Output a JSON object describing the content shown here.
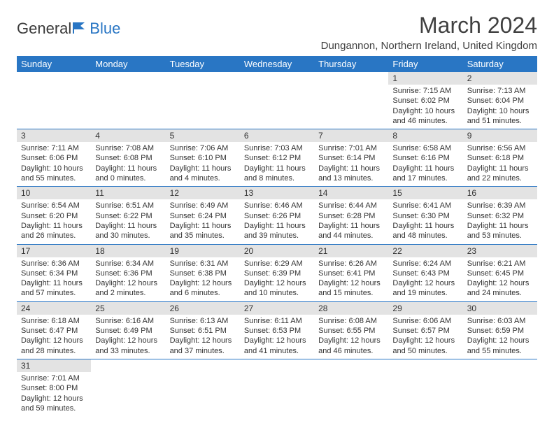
{
  "logo": {
    "text_a": "General",
    "text_b": "Blue"
  },
  "title": "March 2024",
  "location": "Dungannon, Northern Ireland, United Kingdom",
  "colors": {
    "header_bg": "#2976c4",
    "header_text": "#ffffff",
    "daynum_bg": "#e3e3e3",
    "row_border": "#2976c4",
    "body_text": "#333333",
    "logo_dark": "#3a3a3a",
    "logo_blue": "#2976c4"
  },
  "fonts": {
    "title_pt": 32,
    "location_pt": 15,
    "header_pt": 13,
    "body_pt": 11
  },
  "weekdays": [
    "Sunday",
    "Monday",
    "Tuesday",
    "Wednesday",
    "Thursday",
    "Friday",
    "Saturday"
  ],
  "weeks": [
    [
      null,
      null,
      null,
      null,
      null,
      {
        "n": "1",
        "sr": "Sunrise: 7:15 AM",
        "ss": "Sunset: 6:02 PM",
        "dl": "Daylight: 10 hours and 46 minutes."
      },
      {
        "n": "2",
        "sr": "Sunrise: 7:13 AM",
        "ss": "Sunset: 6:04 PM",
        "dl": "Daylight: 10 hours and 51 minutes."
      }
    ],
    [
      {
        "n": "3",
        "sr": "Sunrise: 7:11 AM",
        "ss": "Sunset: 6:06 PM",
        "dl": "Daylight: 10 hours and 55 minutes."
      },
      {
        "n": "4",
        "sr": "Sunrise: 7:08 AM",
        "ss": "Sunset: 6:08 PM",
        "dl": "Daylight: 11 hours and 0 minutes."
      },
      {
        "n": "5",
        "sr": "Sunrise: 7:06 AM",
        "ss": "Sunset: 6:10 PM",
        "dl": "Daylight: 11 hours and 4 minutes."
      },
      {
        "n": "6",
        "sr": "Sunrise: 7:03 AM",
        "ss": "Sunset: 6:12 PM",
        "dl": "Daylight: 11 hours and 8 minutes."
      },
      {
        "n": "7",
        "sr": "Sunrise: 7:01 AM",
        "ss": "Sunset: 6:14 PM",
        "dl": "Daylight: 11 hours and 13 minutes."
      },
      {
        "n": "8",
        "sr": "Sunrise: 6:58 AM",
        "ss": "Sunset: 6:16 PM",
        "dl": "Daylight: 11 hours and 17 minutes."
      },
      {
        "n": "9",
        "sr": "Sunrise: 6:56 AM",
        "ss": "Sunset: 6:18 PM",
        "dl": "Daylight: 11 hours and 22 minutes."
      }
    ],
    [
      {
        "n": "10",
        "sr": "Sunrise: 6:54 AM",
        "ss": "Sunset: 6:20 PM",
        "dl": "Daylight: 11 hours and 26 minutes."
      },
      {
        "n": "11",
        "sr": "Sunrise: 6:51 AM",
        "ss": "Sunset: 6:22 PM",
        "dl": "Daylight: 11 hours and 30 minutes."
      },
      {
        "n": "12",
        "sr": "Sunrise: 6:49 AM",
        "ss": "Sunset: 6:24 PM",
        "dl": "Daylight: 11 hours and 35 minutes."
      },
      {
        "n": "13",
        "sr": "Sunrise: 6:46 AM",
        "ss": "Sunset: 6:26 PM",
        "dl": "Daylight: 11 hours and 39 minutes."
      },
      {
        "n": "14",
        "sr": "Sunrise: 6:44 AM",
        "ss": "Sunset: 6:28 PM",
        "dl": "Daylight: 11 hours and 44 minutes."
      },
      {
        "n": "15",
        "sr": "Sunrise: 6:41 AM",
        "ss": "Sunset: 6:30 PM",
        "dl": "Daylight: 11 hours and 48 minutes."
      },
      {
        "n": "16",
        "sr": "Sunrise: 6:39 AM",
        "ss": "Sunset: 6:32 PM",
        "dl": "Daylight: 11 hours and 53 minutes."
      }
    ],
    [
      {
        "n": "17",
        "sr": "Sunrise: 6:36 AM",
        "ss": "Sunset: 6:34 PM",
        "dl": "Daylight: 11 hours and 57 minutes."
      },
      {
        "n": "18",
        "sr": "Sunrise: 6:34 AM",
        "ss": "Sunset: 6:36 PM",
        "dl": "Daylight: 12 hours and 2 minutes."
      },
      {
        "n": "19",
        "sr": "Sunrise: 6:31 AM",
        "ss": "Sunset: 6:38 PM",
        "dl": "Daylight: 12 hours and 6 minutes."
      },
      {
        "n": "20",
        "sr": "Sunrise: 6:29 AM",
        "ss": "Sunset: 6:39 PM",
        "dl": "Daylight: 12 hours and 10 minutes."
      },
      {
        "n": "21",
        "sr": "Sunrise: 6:26 AM",
        "ss": "Sunset: 6:41 PM",
        "dl": "Daylight: 12 hours and 15 minutes."
      },
      {
        "n": "22",
        "sr": "Sunrise: 6:24 AM",
        "ss": "Sunset: 6:43 PM",
        "dl": "Daylight: 12 hours and 19 minutes."
      },
      {
        "n": "23",
        "sr": "Sunrise: 6:21 AM",
        "ss": "Sunset: 6:45 PM",
        "dl": "Daylight: 12 hours and 24 minutes."
      }
    ],
    [
      {
        "n": "24",
        "sr": "Sunrise: 6:18 AM",
        "ss": "Sunset: 6:47 PM",
        "dl": "Daylight: 12 hours and 28 minutes."
      },
      {
        "n": "25",
        "sr": "Sunrise: 6:16 AM",
        "ss": "Sunset: 6:49 PM",
        "dl": "Daylight: 12 hours and 33 minutes."
      },
      {
        "n": "26",
        "sr": "Sunrise: 6:13 AM",
        "ss": "Sunset: 6:51 PM",
        "dl": "Daylight: 12 hours and 37 minutes."
      },
      {
        "n": "27",
        "sr": "Sunrise: 6:11 AM",
        "ss": "Sunset: 6:53 PM",
        "dl": "Daylight: 12 hours and 41 minutes."
      },
      {
        "n": "28",
        "sr": "Sunrise: 6:08 AM",
        "ss": "Sunset: 6:55 PM",
        "dl": "Daylight: 12 hours and 46 minutes."
      },
      {
        "n": "29",
        "sr": "Sunrise: 6:06 AM",
        "ss": "Sunset: 6:57 PM",
        "dl": "Daylight: 12 hours and 50 minutes."
      },
      {
        "n": "30",
        "sr": "Sunrise: 6:03 AM",
        "ss": "Sunset: 6:59 PM",
        "dl": "Daylight: 12 hours and 55 minutes."
      }
    ],
    [
      {
        "n": "31",
        "sr": "Sunrise: 7:01 AM",
        "ss": "Sunset: 8:00 PM",
        "dl": "Daylight: 12 hours and 59 minutes."
      },
      null,
      null,
      null,
      null,
      null,
      null
    ]
  ]
}
